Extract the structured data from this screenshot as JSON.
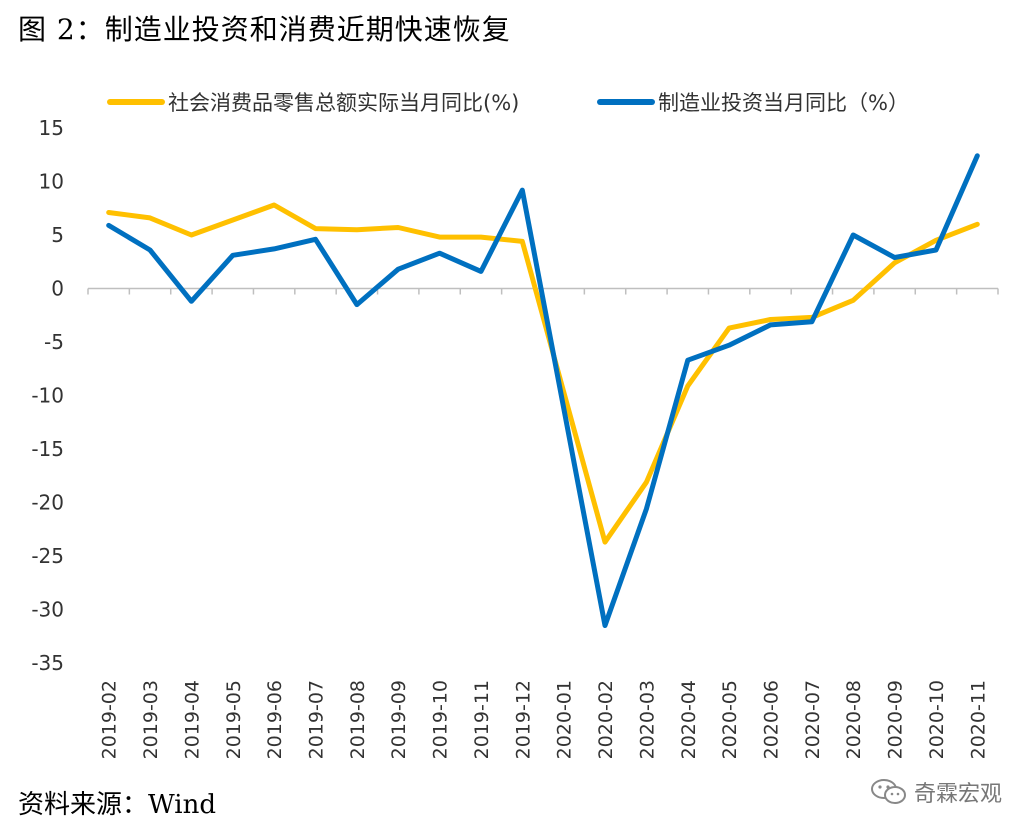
{
  "header": {
    "title": "图 2：制造业投资和消费近期快速恢复"
  },
  "footer": {
    "source": "资料来源：Wind",
    "watermark": "奇霖宏观"
  },
  "icons": {
    "watermark_icon": "wechat-icon"
  },
  "chart_data": {
    "type": "line",
    "title": "图 2：制造业投资和消费近期快速恢复",
    "xlabel": "",
    "ylabel": "",
    "ylim": [
      -35,
      15
    ],
    "yticks": [
      15,
      10,
      5,
      0,
      -5,
      -10,
      -15,
      -20,
      -25,
      -30,
      -35
    ],
    "grid": false,
    "legend_position": "top",
    "categories": [
      "2019-02",
      "2019-03",
      "2019-04",
      "2019-05",
      "2019-06",
      "2019-07",
      "2019-08",
      "2019-09",
      "2019-10",
      "2019-11",
      "2019-12",
      "2020-01",
      "2020-02",
      "2020-03",
      "2020-04",
      "2020-05",
      "2020-06",
      "2020-07",
      "2020-08",
      "2020-09",
      "2020-10",
      "2020-11"
    ],
    "series": [
      {
        "name": "社会消费品零售总额实际当月同比(%)",
        "color": "#FFC000",
        "values": [
          7.1,
          6.6,
          5.0,
          6.4,
          7.8,
          5.6,
          5.5,
          5.7,
          4.8,
          4.8,
          4.4,
          null,
          -23.7,
          -18.1,
          -9.1,
          -3.7,
          -2.9,
          -2.7,
          -1.1,
          2.4,
          4.5,
          6.0
        ]
      },
      {
        "name": "制造业投资当月同比（%）",
        "color": "#0070C0",
        "values": [
          5.9,
          3.6,
          -1.2,
          3.1,
          3.7,
          4.6,
          -1.5,
          1.8,
          3.3,
          1.6,
          9.2,
          null,
          -31.5,
          -20.6,
          -6.7,
          -5.3,
          -3.4,
          -3.1,
          5.0,
          2.9,
          3.6,
          12.4
        ]
      }
    ]
  }
}
